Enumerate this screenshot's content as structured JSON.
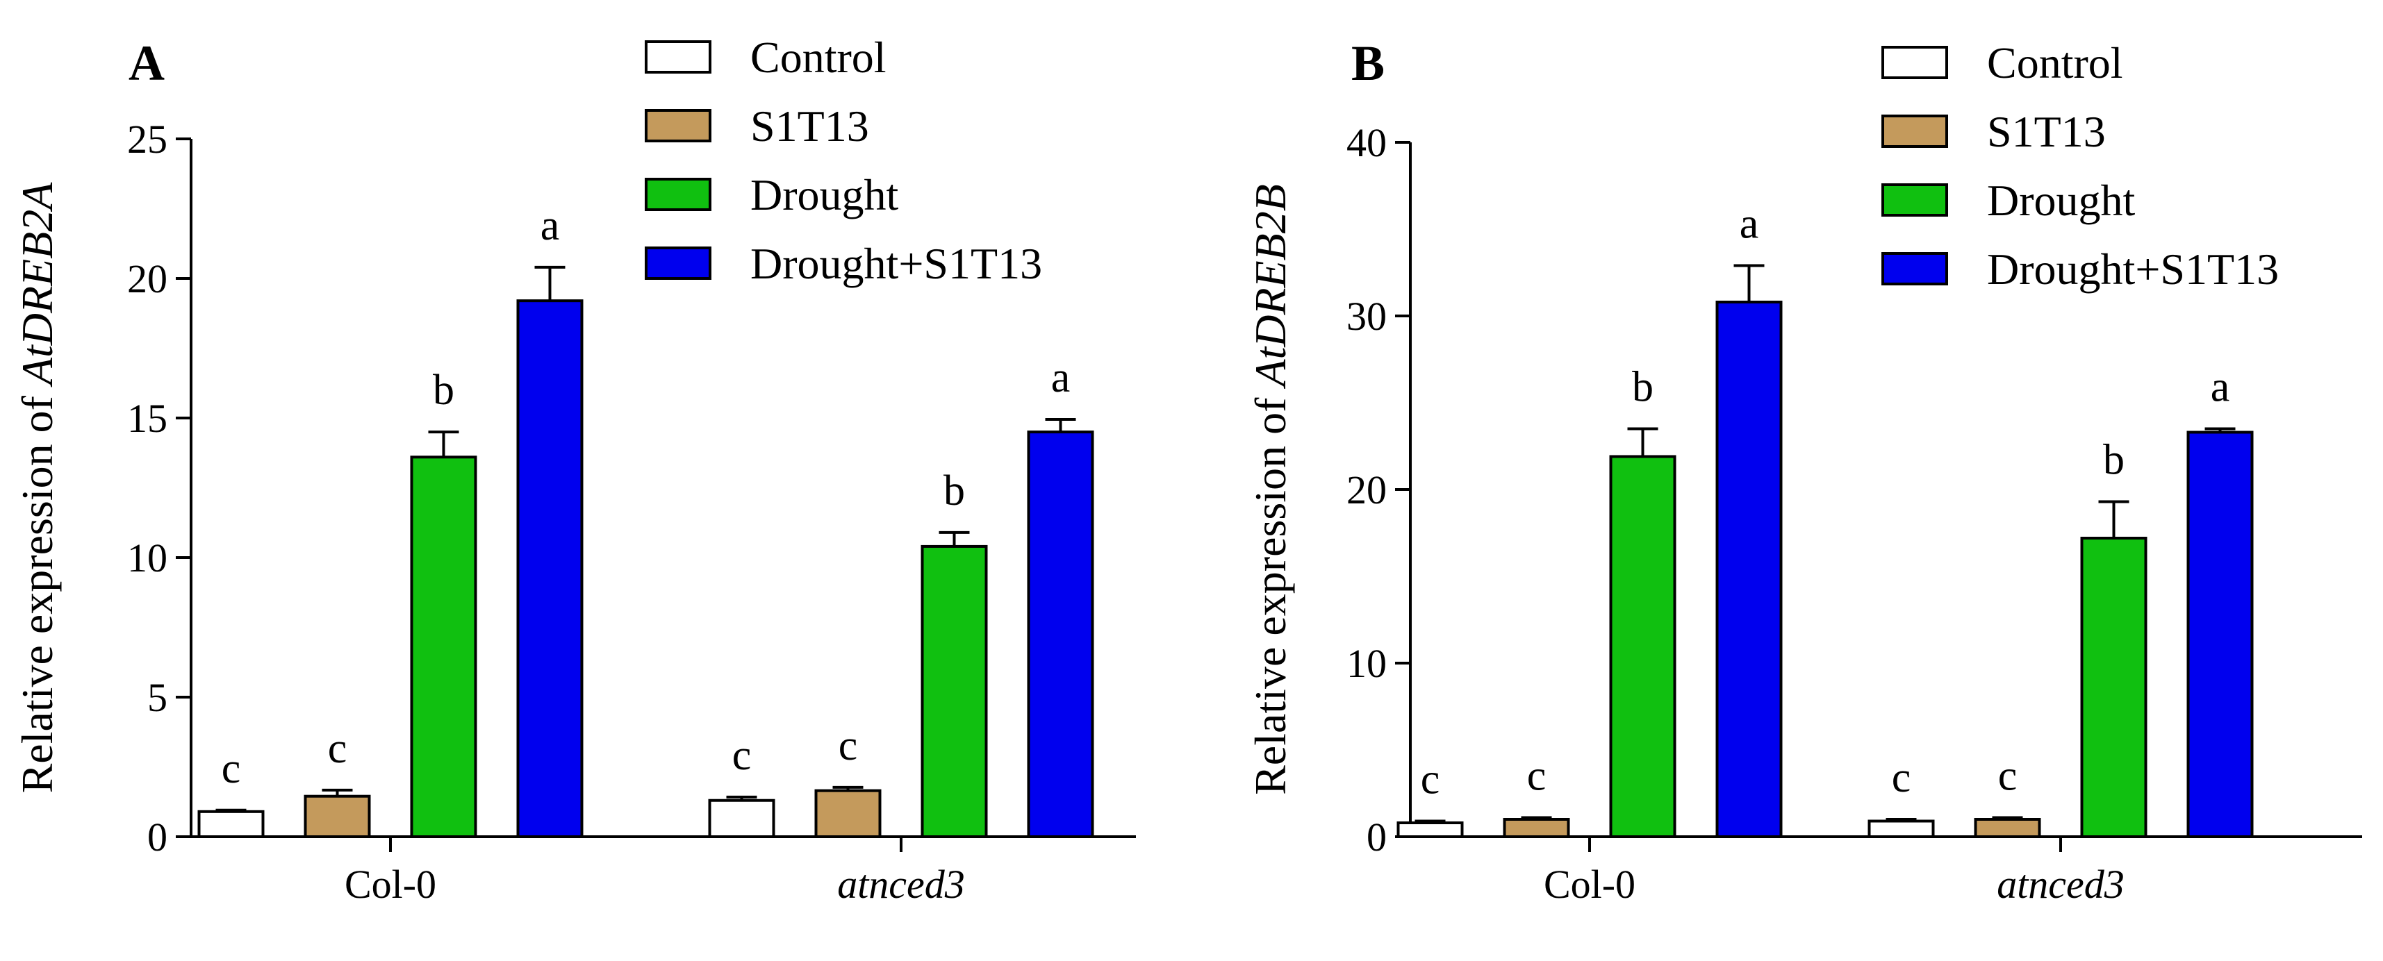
{
  "chart_data": [
    {
      "type": "bar",
      "panel_label": "A",
      "ylabel_prefix": "Relative expression of ",
      "ylabel_gene": "AtDREB2A",
      "categories": [
        "Col-0",
        "atnced3"
      ],
      "category_italic": [
        false,
        true
      ],
      "ylim": [
        0,
        25
      ],
      "yticks": [
        "0",
        "5",
        "10",
        "15",
        "20",
        "25"
      ],
      "legend_position": "top-center",
      "series": [
        {
          "name": "Control",
          "color": "#ffffff",
          "values": [
            0.9,
            1.3
          ],
          "errors": [
            0.05,
            0.12
          ],
          "letters": [
            "c",
            "c"
          ]
        },
        {
          "name": "S1T13",
          "color": "#c49a5c",
          "values": [
            1.45,
            1.65
          ],
          "errors": [
            0.22,
            0.12
          ],
          "letters": [
            "c",
            "c"
          ]
        },
        {
          "name": "Drought",
          "color": "#10c010",
          "values": [
            13.6,
            10.4
          ],
          "errors": [
            0.9,
            0.5
          ],
          "letters": [
            "b",
            "b"
          ]
        },
        {
          "name": "Drought+S1T13",
          "color": "#0000ee",
          "values": [
            19.2,
            14.5
          ],
          "errors": [
            1.2,
            0.45
          ],
          "letters": [
            "a",
            "a"
          ]
        }
      ]
    },
    {
      "type": "bar",
      "panel_label": "B",
      "ylabel_prefix": "Relative expression of ",
      "ylabel_gene": "AtDREB2B",
      "categories": [
        "Col-0",
        "atnced3"
      ],
      "category_italic": [
        false,
        true
      ],
      "ylim": [
        0,
        40
      ],
      "yticks": [
        "0",
        "10",
        "20",
        "30",
        "40"
      ],
      "legend_position": "top-center",
      "series": [
        {
          "name": "Control",
          "color": "#ffffff",
          "values": [
            0.8,
            0.9
          ],
          "errors": [
            0.1,
            0.1
          ],
          "letters": [
            "c",
            "c"
          ]
        },
        {
          "name": "S1T13",
          "color": "#c49a5c",
          "values": [
            1.0,
            1.0
          ],
          "errors": [
            0.1,
            0.1
          ],
          "letters": [
            "c",
            "c"
          ]
        },
        {
          "name": "Drought",
          "color": "#10c010",
          "values": [
            21.9,
            17.2
          ],
          "errors": [
            1.6,
            2.1
          ],
          "letters": [
            "b",
            "b"
          ]
        },
        {
          "name": "Drought+S1T13",
          "color": "#0000ee",
          "values": [
            30.8,
            23.3
          ],
          "errors": [
            2.1,
            0.2
          ],
          "letters": [
            "a",
            "a"
          ]
        }
      ]
    }
  ]
}
